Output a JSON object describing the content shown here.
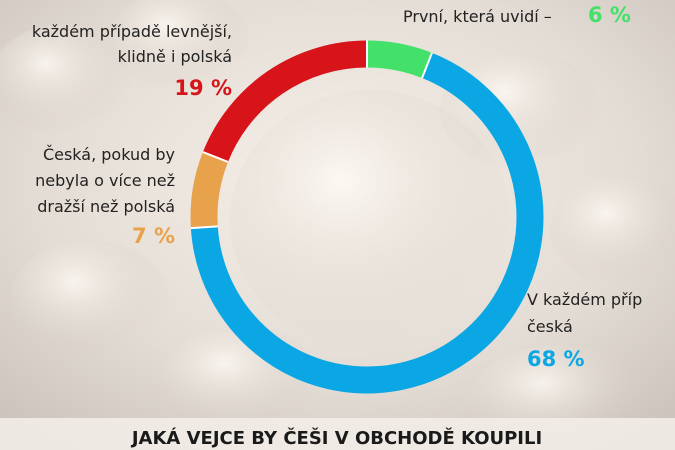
{
  "chart_data": {
    "type": "donut",
    "title": "JAKÁ VEJCE BY ČEŠI V OBCHODĚ KOUPILI",
    "categories": [
      [
        "První, která uvidí –"
      ],
      [
        "V každém příp",
        "česká"
      ],
      [
        "Česká, pokud by",
        "nebyla o více než",
        "dražší než polská"
      ],
      [
        "každém případě levnější,",
        "klidně i polská"
      ]
    ],
    "values": [
      6,
      68,
      7,
      19
    ],
    "value_labels": [
      "6 %",
      "68 %",
      "7 %",
      "19 %"
    ],
    "colors": [
      "#43e06a",
      "#0ba7e4",
      "#e8a24c",
      "#d7141a"
    ]
  }
}
